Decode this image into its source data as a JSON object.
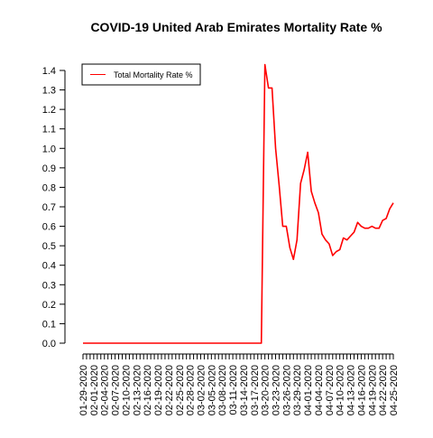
{
  "chart_data": {
    "type": "line",
    "title": "COVID-19 United Arab Emirates Mortality Rate %",
    "xlabel": "",
    "ylabel": "",
    "ylim": [
      0,
      1.4
    ],
    "yticks": [
      "0.0",
      "0.1",
      "0.2",
      "0.3",
      "0.4",
      "0.5",
      "0.6",
      "0.7",
      "0.8",
      "0.9",
      "1.0",
      "1.1",
      "1.2",
      "1.3",
      "1.4"
    ],
    "xtick_labels": [
      "01-29-2020",
      "02-01-2020",
      "02-04-2020",
      "02-07-2020",
      "02-10-2020",
      "02-13-2020",
      "02-16-2020",
      "02-19-2020",
      "02-22-2020",
      "02-25-2020",
      "02-28-2020",
      "03-02-2020",
      "03-05-2020",
      "03-08-2020",
      "03-11-2020",
      "03-14-2020",
      "03-17-2020",
      "03-20-2020",
      "03-23-2020",
      "03-26-2020",
      "03-29-2020",
      "04-01-2020",
      "04-04-2020",
      "04-07-2020",
      "04-10-2020",
      "04-13-2020",
      "04-16-2020",
      "04-19-2020",
      "04-22-2020",
      "04-25-2020"
    ],
    "x_start": "2020-01-29",
    "x_end": "2020-04-25",
    "legend_position": "top-left",
    "series": [
      {
        "name": "Total Mortality Rate %",
        "color": "#ff0000",
        "points": [
          [
            "2020-01-29",
            0.0
          ],
          [
            "2020-03-19",
            0.0
          ],
          [
            "2020-03-20",
            1.43
          ],
          [
            "2020-03-21",
            1.31
          ],
          [
            "2020-03-22",
            1.31
          ],
          [
            "2020-03-23",
            1.0
          ],
          [
            "2020-03-24",
            0.81
          ],
          [
            "2020-03-25",
            0.6
          ],
          [
            "2020-03-26",
            0.6
          ],
          [
            "2020-03-27",
            0.49
          ],
          [
            "2020-03-28",
            0.43
          ],
          [
            "2020-03-29",
            0.53
          ],
          [
            "2020-03-30",
            0.82
          ],
          [
            "2020-03-31",
            0.89
          ],
          [
            "2020-04-01",
            0.98
          ],
          [
            "2020-04-02",
            0.78
          ],
          [
            "2020-04-03",
            0.72
          ],
          [
            "2020-04-04",
            0.67
          ],
          [
            "2020-04-05",
            0.56
          ],
          [
            "2020-04-06",
            0.53
          ],
          [
            "2020-04-07",
            0.51
          ],
          [
            "2020-04-08",
            0.45
          ],
          [
            "2020-04-09",
            0.47
          ],
          [
            "2020-04-10",
            0.48
          ],
          [
            "2020-04-11",
            0.54
          ],
          [
            "2020-04-12",
            0.53
          ],
          [
            "2020-04-13",
            0.55
          ],
          [
            "2020-04-14",
            0.57
          ],
          [
            "2020-04-15",
            0.62
          ],
          [
            "2020-04-16",
            0.6
          ],
          [
            "2020-04-17",
            0.59
          ],
          [
            "2020-04-18",
            0.59
          ],
          [
            "2020-04-19",
            0.6
          ],
          [
            "2020-04-20",
            0.59
          ],
          [
            "2020-04-21",
            0.59
          ],
          [
            "2020-04-22",
            0.63
          ],
          [
            "2020-04-23",
            0.64
          ],
          [
            "2020-04-24",
            0.69
          ],
          [
            "2020-04-25",
            0.72
          ]
        ]
      }
    ]
  }
}
